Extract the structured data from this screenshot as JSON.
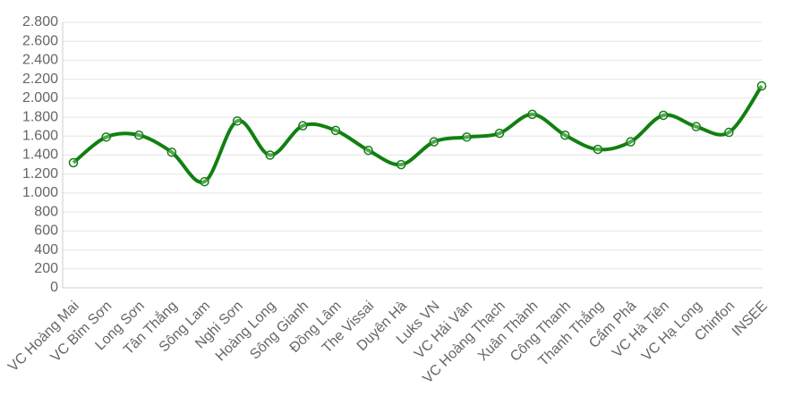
{
  "chart_data": {
    "type": "line",
    "categories": [
      "VC Hoàng Mai",
      "VC Bỉm Sơn",
      "Long Sơn",
      "Tân Thắng",
      "Sông Lam",
      "Nghi Sơn",
      "Hoàng Long",
      "Sông Gianh",
      "Đồng Lâm",
      "The Vissai",
      "Duyên Hà",
      "Luks VN",
      "VC Hải Vân",
      "VC Hoàng Thạch",
      "Xuân Thành",
      "Công Thanh",
      "Thanh Thắng",
      "Cẩm Phả",
      "VC Hà Tiên",
      "VC Hạ Long",
      "Chinfon",
      "INSEE"
    ],
    "series": [
      {
        "color": "#118011",
        "values": [
          1320,
          1590,
          1610,
          1430,
          1120,
          1760,
          1400,
          1710,
          1660,
          1450,
          1300,
          1540,
          1590,
          1630,
          1830,
          1610,
          1460,
          1540,
          1820,
          1700,
          1640,
          2130
        ]
      }
    ],
    "ylim": [
      0,
      2800
    ],
    "yticks": [
      0,
      200,
      400,
      600,
      800,
      {
        "value": 1000,
        "label": "1.000"
      },
      {
        "value": 1200,
        "label": "1.200"
      },
      {
        "value": 1400,
        "label": "1.400"
      },
      {
        "value": 1600,
        "label": "1.600"
      },
      {
        "value": 1800,
        "label": "1.800"
      },
      {
        "value": 2000,
        "label": "2.000"
      },
      {
        "value": 2200,
        "label": "2.200"
      },
      {
        "value": 2400,
        "label": "2.400"
      },
      {
        "value": 2600,
        "label": "2.600"
      },
      {
        "value": 2800,
        "label": "2.800"
      }
    ],
    "grid": true
  }
}
